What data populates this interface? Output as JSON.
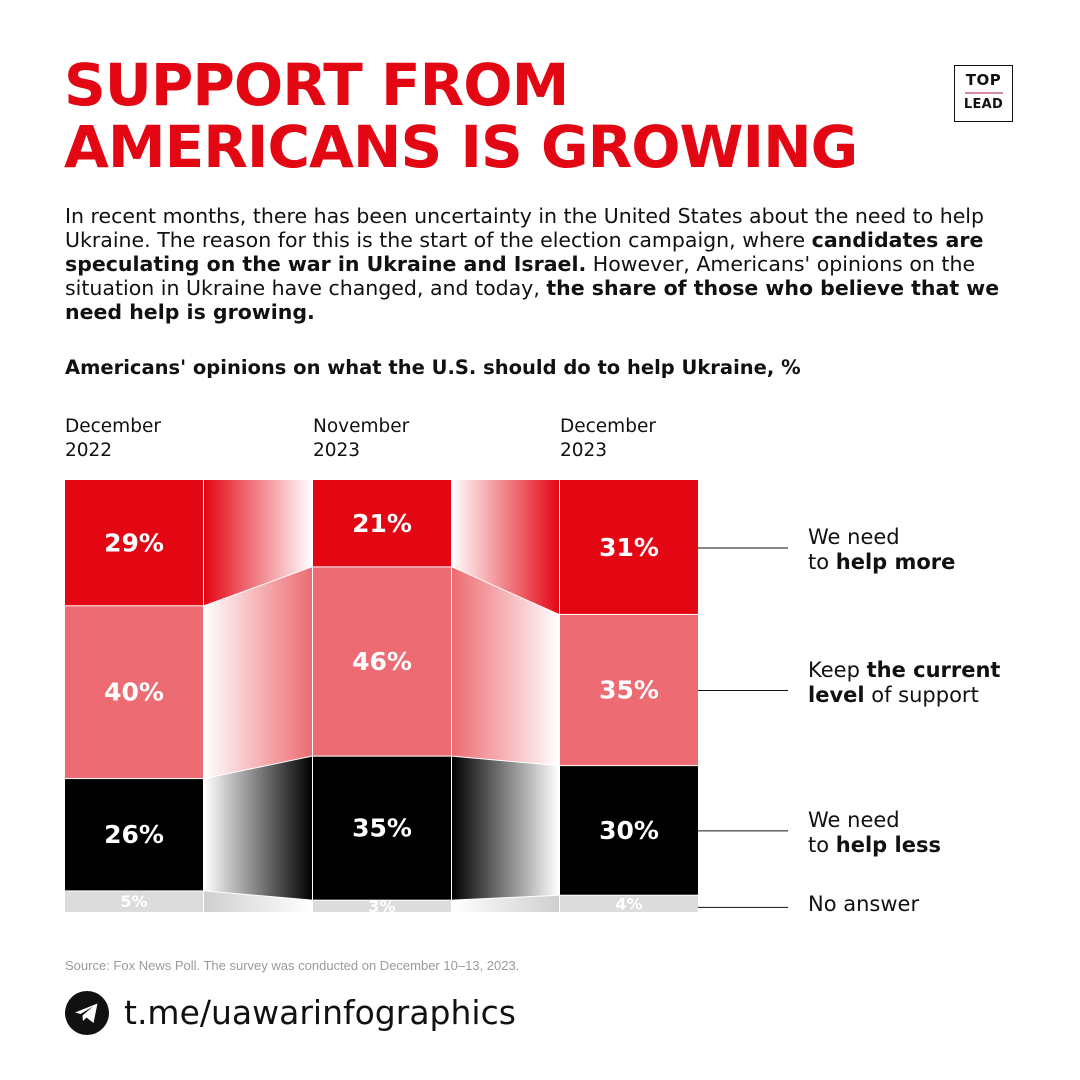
{
  "title": {
    "line1": "SUPPORT FROM",
    "line2": "AMERICANS IS GROWING"
  },
  "logo": {
    "line1": "TOP",
    "line2": "LEAD"
  },
  "intro": {
    "t1": "In recent months, there has been uncertainty in the United States about the need to help Ukraine. The reason for this is the start of the election campaign, where ",
    "b1": "candidates are speculating on the war in Ukraine and Israel.",
    "t2": " However, Americans' opinions on the situation in Ukraine have changed, and today, ",
    "b2": "the share of those who believe that we need help is growing."
  },
  "chart_data": {
    "type": "bar",
    "stacked": true,
    "title": "Americans' opinions on what the U.S. should do to help Ukraine, %",
    "categories": [
      "December 2022",
      "November 2023",
      "December 2023"
    ],
    "category_lines": [
      [
        "December",
        "2022"
      ],
      [
        "November",
        "2023"
      ],
      [
        "December",
        "2023"
      ]
    ],
    "series": [
      {
        "name": "We need to help more",
        "values": [
          29,
          21,
          31
        ],
        "color": "#e30613",
        "text_color": "#ffffff",
        "labels": [
          "29%",
          "21%",
          "31%"
        ]
      },
      {
        "name": "Keep the current level of support",
        "values": [
          40,
          46,
          35
        ],
        "color": "#ed6b72",
        "text_color": "#ffffff",
        "labels": [
          "40%",
          "46%",
          "35%"
        ]
      },
      {
        "name": "We need to help less",
        "values": [
          26,
          35,
          30
        ],
        "color": "#000000",
        "text_color": "#ffffff",
        "labels": [
          "26%",
          "35%",
          "30%"
        ]
      },
      {
        "name": "No answer",
        "values": [
          5,
          3,
          4
        ],
        "color": "#dcdcdc",
        "text_color": "#ffffff",
        "labels": [
          "5%",
          "3%",
          "4%"
        ]
      }
    ],
    "legend_placement": "right"
  },
  "legend": {
    "help_more": {
      "t1": "We need",
      "t2": "to ",
      "b": "help more"
    },
    "keep": {
      "t1": "Keep ",
      "b1": "the current",
      "b2": "level",
      "t2": " of support"
    },
    "help_less": {
      "t1": "We need",
      "t2": "to ",
      "b": "help less"
    },
    "no_answer": {
      "t1": "No answer"
    }
  },
  "source": "Source: Fox News Poll. The survey was conducted on December 10–13, 2023.",
  "footer": {
    "link": "t.me/uawarinfographics",
    "icon": "telegram-icon"
  }
}
